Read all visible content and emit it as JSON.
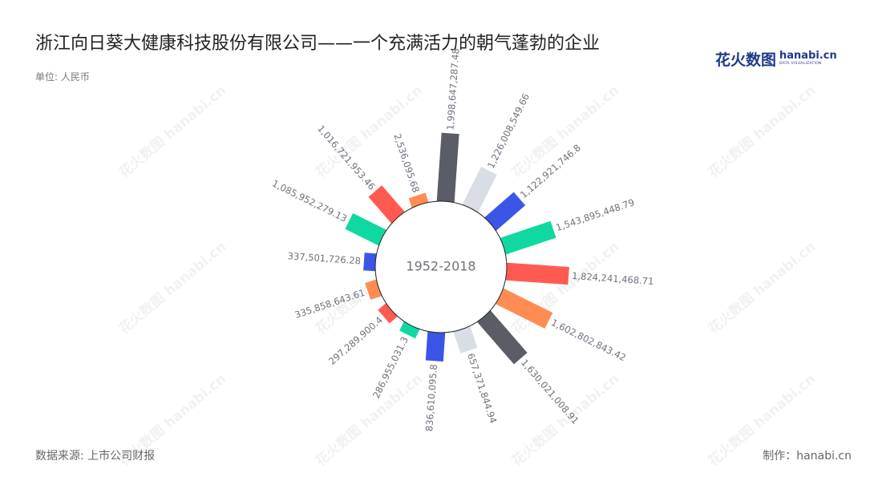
{
  "title": "浙江向日葵大健康科技股份有限公司——一个充满活力的朝气蓬勃的企业",
  "unit": "单位: 人民币",
  "logo": {
    "cn": "花火数图",
    "en": "hanabi.cn",
    "sub": "DATA VISUALIZATION"
  },
  "watermark": "花火数图 hanabi.cn",
  "footer": {
    "source": "数据来源: 上市公司财报",
    "maker": "制作：hanabi.cn"
  },
  "chart_data": {
    "type": "bar",
    "layout": "polar",
    "center_label": "1952-2018",
    "series": [
      {
        "values": [
          {
            "label": "1,998,647,287.48",
            "value": 1998647287.48,
            "color": "#5a5c66"
          },
          {
            "label": "1,226,008,549.66",
            "value": 1226008549.66,
            "color": "#d9dde5"
          },
          {
            "label": "1,122,921,746.8",
            "value": 1122921746.8,
            "color": "#3b55e6"
          },
          {
            "label": "1,543,895,448.79",
            "value": 1543895448.79,
            "color": "#0fd9a0"
          },
          {
            "label": "1,824,241,468.71",
            "value": 1824241468.71,
            "color": "#ff5a52"
          },
          {
            "label": "1,602,802,843.42",
            "value": 1602802843.42,
            "color": "#ff8c52"
          },
          {
            "label": "1,630,021,008.91",
            "value": 1630021008.91,
            "color": "#5a5c66"
          },
          {
            "label": "657,371,844.94",
            "value": 657371844.94,
            "color": "#d9dde5"
          },
          {
            "label": "836,610,095.8",
            "value": 836610095.8,
            "color": "#3b55e6"
          },
          {
            "label": "286,955,031.3",
            "value": 286955031.3,
            "color": "#0fd9a0"
          },
          {
            "label": "297,289,900.4",
            "value": 297289900.4,
            "color": "#ff5a52"
          },
          {
            "label": "335,858,643.61",
            "value": 335858643.61,
            "color": "#ff8c52"
          },
          {
            "label": "337,501,726.28",
            "value": 337501726.28,
            "color": "#3b55e6"
          },
          {
            "label": "1,085,952,279.13",
            "value": 1085952279.13,
            "color": "#0fd9a0"
          },
          {
            "label": "1,016,721,953.46",
            "value": 1016721953.46,
            "color": "#ff5a52"
          },
          {
            "label": "2,536,095.68",
            "value": 2536095.68,
            "color": "#ff8c52"
          }
        ]
      }
    ]
  }
}
